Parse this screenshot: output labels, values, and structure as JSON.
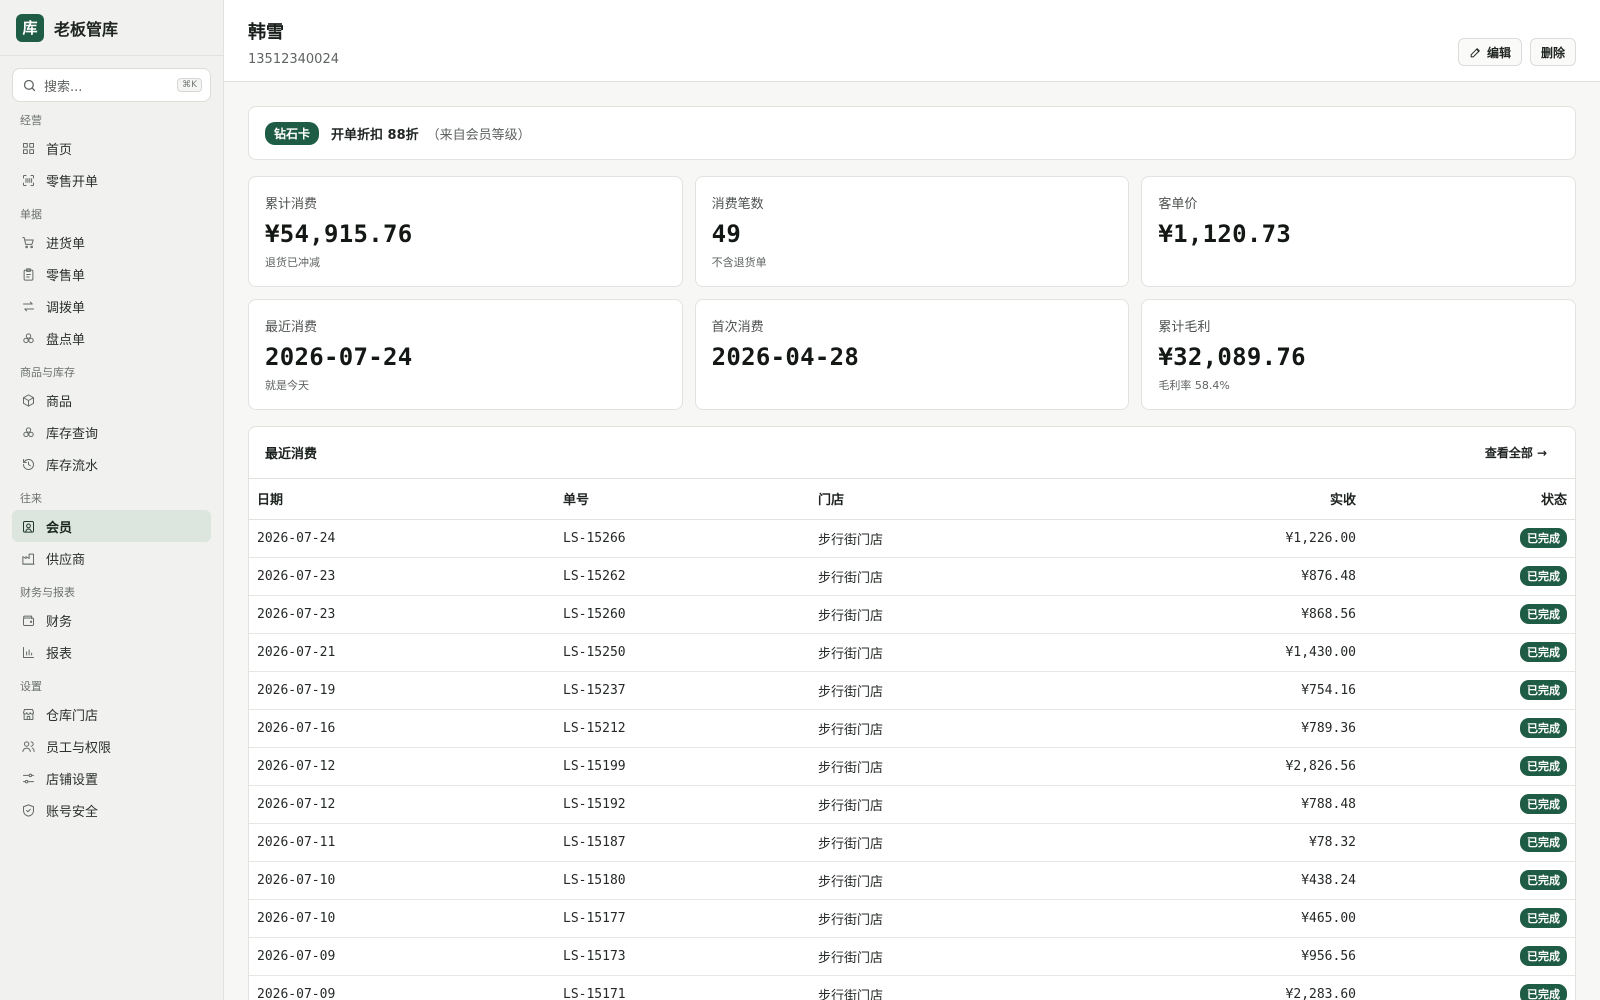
{
  "brand": {
    "logo": "库",
    "name": "老板管库"
  },
  "search": {
    "placeholder": "搜索...",
    "shortcut": "⌘K"
  },
  "nav": [
    {
      "heading": "经营",
      "items": [
        {
          "label": "首页",
          "icon": "dashboard-icon",
          "active": false
        },
        {
          "label": "零售开单",
          "icon": "scan-icon",
          "active": false
        }
      ]
    },
    {
      "heading": "单据",
      "items": [
        {
          "label": "进货单",
          "icon": "cart-icon",
          "active": false
        },
        {
          "label": "零售单",
          "icon": "clipboard-icon",
          "active": false
        },
        {
          "label": "调拨单",
          "icon": "transfer-icon",
          "active": false
        },
        {
          "label": "盘点单",
          "icon": "boxes-icon",
          "active": false
        }
      ]
    },
    {
      "heading": "商品与库存",
      "items": [
        {
          "label": "商品",
          "icon": "package-icon",
          "active": false
        },
        {
          "label": "库存查询",
          "icon": "boxes-icon",
          "active": false
        },
        {
          "label": "库存流水",
          "icon": "history-icon",
          "active": false
        }
      ]
    },
    {
      "heading": "往来",
      "items": [
        {
          "label": "会员",
          "icon": "member-icon",
          "active": true
        },
        {
          "label": "供应商",
          "icon": "factory-icon",
          "active": false
        }
      ]
    },
    {
      "heading": "财务与报表",
      "items": [
        {
          "label": "财务",
          "icon": "wallet-icon",
          "active": false
        },
        {
          "label": "报表",
          "icon": "chart-icon",
          "active": false
        }
      ]
    },
    {
      "heading": "设置",
      "items": [
        {
          "label": "仓库门店",
          "icon": "store-icon",
          "active": false
        },
        {
          "label": "员工与权限",
          "icon": "users-icon",
          "active": false
        },
        {
          "label": "店铺设置",
          "icon": "sliders-icon",
          "active": false
        },
        {
          "label": "账号安全",
          "icon": "shield-icon",
          "active": false
        }
      ]
    }
  ],
  "header": {
    "name": "韩雪",
    "phone": "13512340024",
    "edit_label": "编辑",
    "delete_label": "删除"
  },
  "banner": {
    "tier": "钻石卡",
    "discount": "开单折扣 88折",
    "source": "（来自会员等级）"
  },
  "stats": [
    {
      "label": "累计消费",
      "value": "¥54,915.76",
      "note": "退货已冲减"
    },
    {
      "label": "消费笔数",
      "value": "49",
      "note": "不含退货单"
    },
    {
      "label": "客单价",
      "value": "¥1,120.73",
      "note": ""
    },
    {
      "label": "最近消费",
      "value": "2026-07-24",
      "note": "就是今天"
    },
    {
      "label": "首次消费",
      "value": "2026-04-28",
      "note": ""
    },
    {
      "label": "累计毛利",
      "value": "¥32,089.76",
      "note": "毛利率 58.4%"
    }
  ],
  "recent": {
    "title": "最近消费",
    "view_all": "查看全部",
    "columns": {
      "date": "日期",
      "no": "单号",
      "store": "门店",
      "amount": "实收",
      "status": "状态"
    },
    "rows": [
      {
        "date": "2026-07-24",
        "no": "LS-15266",
        "store": "步行街门店",
        "amount": "¥1,226.00",
        "status": "已完成"
      },
      {
        "date": "2026-07-23",
        "no": "LS-15262",
        "store": "步行街门店",
        "amount": "¥876.48",
        "status": "已完成"
      },
      {
        "date": "2026-07-23",
        "no": "LS-15260",
        "store": "步行街门店",
        "amount": "¥868.56",
        "status": "已完成"
      },
      {
        "date": "2026-07-21",
        "no": "LS-15250",
        "store": "步行街门店",
        "amount": "¥1,430.00",
        "status": "已完成"
      },
      {
        "date": "2026-07-19",
        "no": "LS-15237",
        "store": "步行街门店",
        "amount": "¥754.16",
        "status": "已完成"
      },
      {
        "date": "2026-07-16",
        "no": "LS-15212",
        "store": "步行街门店",
        "amount": "¥789.36",
        "status": "已完成"
      },
      {
        "date": "2026-07-12",
        "no": "LS-15199",
        "store": "步行街门店",
        "amount": "¥2,826.56",
        "status": "已完成"
      },
      {
        "date": "2026-07-12",
        "no": "LS-15192",
        "store": "步行街门店",
        "amount": "¥788.48",
        "status": "已完成"
      },
      {
        "date": "2026-07-11",
        "no": "LS-15187",
        "store": "步行街门店",
        "amount": "¥78.32",
        "status": "已完成"
      },
      {
        "date": "2026-07-10",
        "no": "LS-15180",
        "store": "步行街门店",
        "amount": "¥438.24",
        "status": "已完成"
      },
      {
        "date": "2026-07-10",
        "no": "LS-15177",
        "store": "步行街门店",
        "amount": "¥465.00",
        "status": "已完成"
      },
      {
        "date": "2026-07-09",
        "no": "LS-15173",
        "store": "步行街门店",
        "amount": "¥956.56",
        "status": "已完成"
      },
      {
        "date": "2026-07-09",
        "no": "LS-15171",
        "store": "步行街门店",
        "amount": "¥2,283.60",
        "status": "已完成"
      }
    ]
  },
  "colors": {
    "accent": "#1f5c45",
    "active_nav_bg": "#dde5df",
    "background": "#f7f7f5"
  }
}
